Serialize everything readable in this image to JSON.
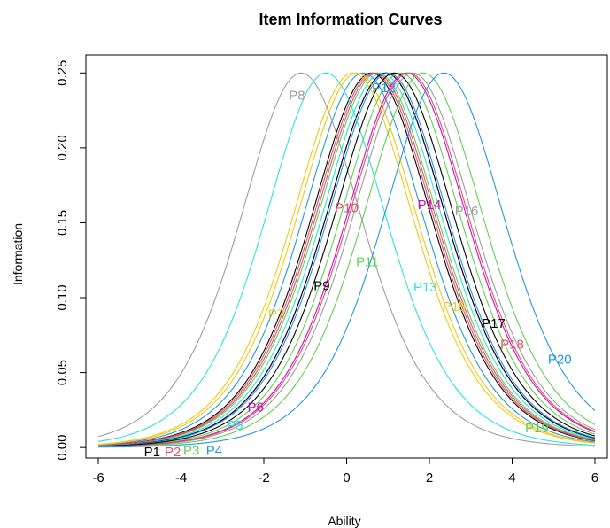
{
  "chart_data": {
    "type": "line",
    "title": "Item Information Curves",
    "xlabel": "Ability",
    "ylabel": "Information",
    "xlim": [
      -6.3,
      6.3
    ],
    "ylim": [
      -0.007,
      0.262
    ],
    "xticks": [
      -6,
      -4,
      -2,
      0,
      2,
      4,
      6
    ],
    "xtick_labels": [
      "-6",
      "-4",
      "-2",
      "0",
      "2",
      "4",
      "6"
    ],
    "yticks": [
      0.0,
      0.05,
      0.1,
      0.15,
      0.2,
      0.25
    ],
    "ytick_labels": [
      "0.00",
      "0.05",
      "0.10",
      "0.15",
      "0.20",
      "0.25"
    ],
    "grid": false,
    "legend": "none",
    "x_range": [
      -6,
      6
    ],
    "series": [
      {
        "name": "P1",
        "difficulty": 0.6,
        "color": "#000000",
        "label_at": [
          -4.7,
          -0.003
        ]
      },
      {
        "name": "P2",
        "difficulty": 0.65,
        "color": "#DF536B",
        "label_at": [
          -4.2,
          -0.003
        ]
      },
      {
        "name": "P3",
        "difficulty": 0.75,
        "color": "#61D04F",
        "label_at": [
          -3.75,
          -0.002
        ]
      },
      {
        "name": "P4",
        "difficulty": 0.4,
        "color": "#2297E6",
        "label_at": [
          -3.2,
          -0.002
        ]
      },
      {
        "name": "P5",
        "difficulty": 0.85,
        "color": "#28E2E5",
        "label_at": [
          -2.7,
          0.015
        ]
      },
      {
        "name": "P6",
        "difficulty": 0.95,
        "color": "#CD0BBC",
        "label_at": [
          -2.2,
          0.027
        ]
      },
      {
        "name": "P7",
        "difficulty": 0.15,
        "color": "#F5C710",
        "label_at": [
          -1.7,
          0.089
        ]
      },
      {
        "name": "P8",
        "difficulty": -1.1,
        "color": "#9E9E9E",
        "label_at": [
          -1.2,
          0.235
        ]
      },
      {
        "name": "P9",
        "difficulty": 0.95,
        "color": "#000000",
        "label_at": [
          -0.6,
          0.108
        ]
      },
      {
        "name": "P10",
        "difficulty": 0.7,
        "color": "#DF536B",
        "label_at": [
          0.0,
          0.16
        ]
      },
      {
        "name": "P11",
        "difficulty": 1.3,
        "color": "#61D04F",
        "label_at": [
          0.5,
          0.124
        ]
      },
      {
        "name": "P12",
        "difficulty": 1.0,
        "color": "#2297E6",
        "label_at": [
          0.9,
          0.24
        ]
      },
      {
        "name": "P13",
        "difficulty": -0.5,
        "color": "#28E2E5",
        "label_at": [
          1.9,
          0.107
        ]
      },
      {
        "name": "P14",
        "difficulty": 1.45,
        "color": "#CD0BBC",
        "label_at": [
          2.0,
          0.162
        ]
      },
      {
        "name": "P15",
        "difficulty": 0.25,
        "color": "#F5C710",
        "label_at": [
          2.6,
          0.094
        ]
      },
      {
        "name": "P16",
        "difficulty": 1.6,
        "color": "#9E9E9E",
        "label_at": [
          2.9,
          0.158
        ]
      },
      {
        "name": "P17",
        "difficulty": 1.15,
        "color": "#000000",
        "label_at": [
          3.55,
          0.083
        ]
      },
      {
        "name": "P18",
        "difficulty": 1.5,
        "color": "#DF536B",
        "label_at": [
          4.0,
          0.069
        ]
      },
      {
        "name": "P19",
        "difficulty": 1.85,
        "color": "#61D04F",
        "label_at": [
          4.6,
          0.013
        ]
      },
      {
        "name": "P20",
        "difficulty": 2.35,
        "color": "#2297E6",
        "label_at": [
          5.15,
          0.059
        ]
      }
    ]
  }
}
